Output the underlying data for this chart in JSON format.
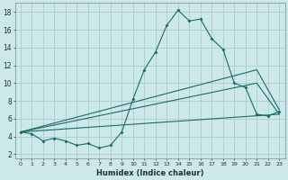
{
  "xlabel": "Humidex (Indice chaleur)",
  "bg_color": "#cce8e8",
  "grid_color": "#b0d0d0",
  "line_color": "#1a6b6b",
  "x_ticks": [
    0,
    1,
    2,
    3,
    4,
    5,
    6,
    7,
    8,
    9,
    10,
    11,
    12,
    13,
    14,
    15,
    16,
    17,
    18,
    19,
    20,
    21,
    22,
    23
  ],
  "y_ticks": [
    2,
    4,
    6,
    8,
    10,
    12,
    14,
    16,
    18
  ],
  "ylim": [
    1.5,
    19.0
  ],
  "xlim": [
    -0.5,
    23.5
  ],
  "line1_x": [
    0,
    1,
    2,
    3,
    4,
    5,
    6,
    7,
    8,
    9,
    10,
    11,
    12,
    13,
    14,
    15,
    16,
    17,
    18,
    19,
    20,
    21,
    22,
    23
  ],
  "line1_y": [
    4.5,
    4.3,
    3.5,
    3.8,
    3.5,
    3.0,
    3.2,
    2.7,
    3.0,
    4.5,
    8.2,
    11.5,
    13.5,
    16.5,
    18.2,
    17.0,
    17.2,
    15.0,
    13.8,
    10.0,
    9.5,
    6.5,
    6.3,
    6.8
  ],
  "line2_x": [
    0,
    23
  ],
  "line2_y": [
    4.5,
    6.5
  ],
  "line3_x": [
    0,
    21,
    23
  ],
  "line3_y": [
    4.5,
    10.0,
    6.5
  ],
  "line4_x": [
    0,
    21,
    23
  ],
  "line4_y": [
    4.5,
    11.5,
    7.0
  ]
}
